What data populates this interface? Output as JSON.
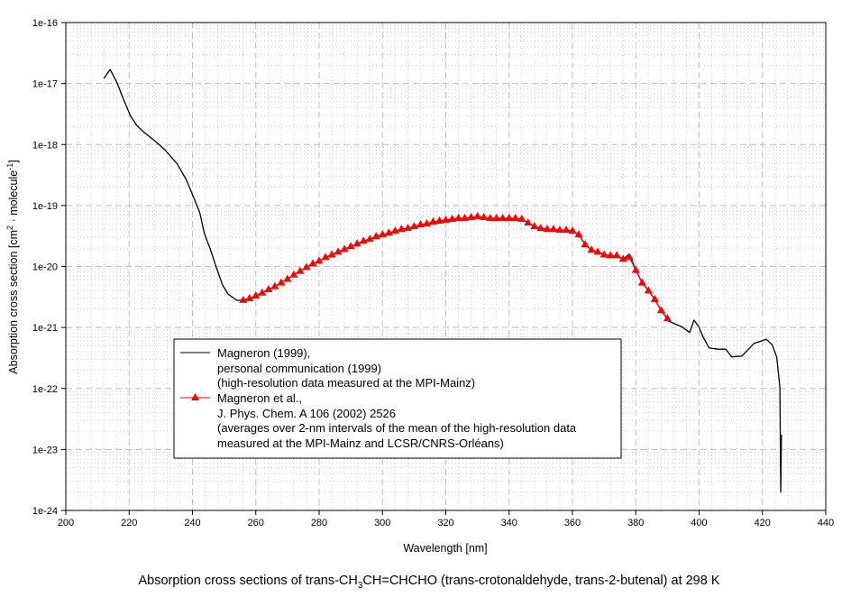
{
  "chart_data": {
    "type": "line",
    "title": [
      "Absorption cross sections of trans-CH",
      "3",
      "CH=CHCHO (trans-crotonaldehyde, trans-2-butenal) at 298 K"
    ],
    "xlabel": "Wavelength [nm]",
    "ylabel": [
      "Absorption cross section [cm",
      "2",
      " · molecule",
      "-1",
      "]"
    ],
    "xlim": [
      200,
      440
    ],
    "ylim": [
      1e-24,
      1e-16
    ],
    "yscale": "log",
    "grid": true,
    "x_ticks": [
      "200",
      "220",
      "240",
      "260",
      "280",
      "300",
      "320",
      "340",
      "360",
      "380",
      "400",
      "420",
      "440"
    ],
    "y_ticks": [
      "1e-16",
      "1e-17",
      "1e-18",
      "1e-19",
      "1e-20",
      "1e-21",
      "1e-22",
      "1e-23",
      "1e-24"
    ],
    "legend": {
      "placement": "lower-left",
      "entries": [
        {
          "lines": [
            "Magneron (1999),",
            "personal communication (1999)",
            "(high-resolution data measured at the MPI-Mainz)"
          ]
        },
        {
          "lines": [
            "Magneron et al.,",
            "J. Phys. Chem. A 106 (2002) 2526",
            "(averages over 2-nm intervals of the mean of the high-resolution data",
            "measured at the MPI-Mainz  and LCSR/CNRS-Orléans)"
          ]
        }
      ]
    },
    "series": [
      {
        "color": "#000000",
        "marker": "none",
        "x": [
          212,
          214,
          216.2,
          218.1,
          220.5,
          222.4,
          224.8,
          228.1,
          231.3,
          235.2,
          238,
          240.4,
          242.3,
          243.8,
          245.6,
          247.5,
          249.5,
          251.3,
          254.1,
          256,
          258,
          260,
          262,
          264,
          266,
          268,
          270,
          272,
          274,
          276,
          278,
          280,
          282,
          284,
          286,
          288,
          290,
          292,
          294,
          296,
          298,
          300,
          302,
          304,
          306,
          308,
          310,
          312,
          314,
          316,
          318,
          320,
          322,
          324,
          326,
          328,
          330,
          332,
          334,
          336,
          338,
          340,
          342,
          344,
          346,
          348,
          350,
          352,
          354,
          356,
          358,
          360,
          362,
          364,
          366,
          368,
          370,
          372,
          374,
          376,
          378,
          380,
          382,
          384,
          386,
          388,
          390.4,
          394.6,
          397,
          398.4,
          399.9,
          401.3,
          403.2,
          406,
          408.4,
          410.3,
          413.5,
          417.4,
          421.2,
          423.1,
          424.5,
          425.2,
          425.5,
          425.8,
          426.0,
          426.2
        ],
        "y": [
          1.21e-17,
          1.7e-17,
          1.02e-17,
          5.7e-18,
          2.9e-18,
          2.06e-18,
          1.57e-18,
          1.15e-18,
          8.2e-19,
          4.8e-19,
          2.67e-19,
          1.35e-19,
          7.6e-20,
          3.45e-20,
          1.94e-20,
          9.8e-21,
          4.96e-21,
          3.5e-21,
          2.78e-21,
          2.8e-21,
          3e-21,
          3.3e-21,
          3.7e-21,
          4.2e-21,
          4.7e-21,
          5.4e-21,
          6.2e-21,
          7.3e-21,
          8.4e-21,
          9.7e-21,
          1.11e-20,
          1.23e-20,
          1.41e-20,
          1.56e-20,
          1.73e-20,
          1.92e-20,
          2.13e-20,
          2.36e-20,
          2.62e-20,
          2.81e-20,
          3.11e-20,
          3.33e-20,
          3.56e-20,
          3.82e-20,
          4.09e-20,
          4.24e-20,
          4.54e-20,
          4.86e-20,
          5.03e-20,
          5.39e-20,
          5.57e-20,
          5.77e-20,
          5.97e-20,
          6.18e-20,
          6.18e-20,
          6.4e-20,
          6.62e-20,
          6.4e-20,
          6.18e-20,
          6.18e-20,
          6.18e-20,
          6.18e-20,
          6.18e-20,
          5.97e-20,
          5.2e-20,
          4.54e-20,
          4.24e-20,
          4.09e-20,
          4.09e-20,
          3.95e-20,
          3.95e-20,
          3.82e-20,
          3.33e-20,
          2.28e-20,
          1.86e-20,
          1.73e-20,
          1.56e-20,
          1.51e-20,
          1.45e-20,
          1.32e-20,
          1.6e-20,
          8.7e-21,
          5.4e-21,
          4e-21,
          2.9e-21,
          1.9e-21,
          1.27e-21,
          1.02e-21,
          8.3e-22,
          1.32e-21,
          1.03e-21,
          6.9e-22,
          4.6e-22,
          4.4e-22,
          4.4e-22,
          3.3e-22,
          3.4e-22,
          5.5e-22,
          6.4e-22,
          5.2e-22,
          3.3e-22,
          1.5e-22,
          1.06e-22,
          2e-24,
          1.7e-23,
          1.7e-23
        ]
      },
      {
        "color": "#ff0000",
        "marker": "triangle",
        "x": [
          256,
          258,
          260,
          262,
          264,
          266,
          268,
          270,
          272,
          274,
          276,
          278,
          280,
          282,
          284,
          286,
          288,
          290,
          292,
          294,
          296,
          298,
          300,
          302,
          304,
          306,
          308,
          310,
          312,
          314,
          316,
          318,
          320,
          322,
          324,
          326,
          328,
          330,
          332,
          334,
          336,
          338,
          340,
          342,
          344,
          346,
          348,
          350,
          352,
          354,
          356,
          358,
          360,
          362,
          364,
          366,
          368,
          370,
          372,
          374,
          376,
          378,
          380,
          382,
          384,
          386,
          388,
          390
        ],
        "y": [
          2.8e-21,
          3e-21,
          3.3e-21,
          3.7e-21,
          4.2e-21,
          4.7e-21,
          5.4e-21,
          6.2e-21,
          7.3e-21,
          8.4e-21,
          9.7e-21,
          1.11e-20,
          1.23e-20,
          1.41e-20,
          1.56e-20,
          1.73e-20,
          1.92e-20,
          2.13e-20,
          2.36e-20,
          2.62e-20,
          2.81e-20,
          3.11e-20,
          3.33e-20,
          3.56e-20,
          3.82e-20,
          4.09e-20,
          4.24e-20,
          4.54e-20,
          4.86e-20,
          5.03e-20,
          5.39e-20,
          5.57e-20,
          5.77e-20,
          5.97e-20,
          6.18e-20,
          6.18e-20,
          6.4e-20,
          6.62e-20,
          6.4e-20,
          6.18e-20,
          6.18e-20,
          6.18e-20,
          6.18e-20,
          6.18e-20,
          5.97e-20,
          5.2e-20,
          4.54e-20,
          4.24e-20,
          4.09e-20,
          4.09e-20,
          3.95e-20,
          3.95e-20,
          3.82e-20,
          3.33e-20,
          2.28e-20,
          1.86e-20,
          1.73e-20,
          1.56e-20,
          1.51e-20,
          1.51e-20,
          1.32e-20,
          1.41e-20,
          8.7e-21,
          5.4e-21,
          4e-21,
          2.9e-21,
          1.9e-21,
          1.4e-21
        ]
      }
    ]
  }
}
